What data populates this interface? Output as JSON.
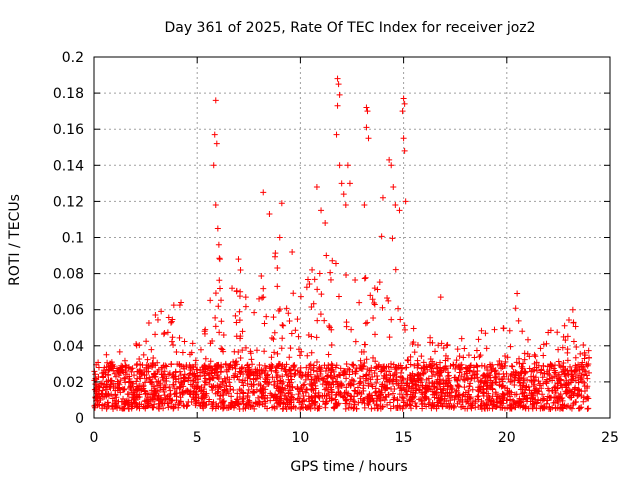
{
  "chart_data": {
    "type": "scatter",
    "title": "Day 361 of 2025, Rate Of TEC Index for receiver joz2",
    "xlabel": "GPS time / hours",
    "ylabel": "ROTI / TECUs",
    "xlim": [
      0,
      25
    ],
    "ylim": [
      0,
      0.2
    ],
    "grid": true,
    "marker": "+",
    "colors": {
      "points": "#ff0000",
      "grid": "#a0a0a0",
      "frame": "#000000"
    },
    "x_ticks": [
      0,
      5,
      10,
      15,
      20,
      25
    ],
    "x_tick_labels": [
      "0",
      "5",
      "10",
      "15",
      "20",
      "25"
    ],
    "y_ticks": [
      0,
      0.02,
      0.04,
      0.06,
      0.08,
      0.1,
      0.12,
      0.14,
      0.16,
      0.18,
      0.2
    ],
    "y_tick_labels": [
      "0",
      "0.02",
      "0.04",
      "0.06",
      "0.08",
      "0.1",
      "0.12",
      "0.14",
      "0.16",
      "0.18",
      "0.2"
    ],
    "series": [
      {
        "name": "ROTI",
        "data_range": [
          0,
          24
        ],
        "base_band": [
          0.005,
          0.03
        ],
        "envelope": [
          [
            0,
            0.035
          ],
          [
            0.5,
            0.045
          ],
          [
            1,
            0.038
          ],
          [
            2,
            0.04
          ],
          [
            2.5,
            0.06
          ],
          [
            3.5,
            0.06
          ],
          [
            4,
            0.075
          ],
          [
            4.5,
            0.07
          ],
          [
            5,
            0.05
          ],
          [
            5.5,
            0.06
          ],
          [
            6,
            0.09
          ],
          [
            6.5,
            0.08
          ],
          [
            7,
            0.07
          ],
          [
            8,
            0.09
          ],
          [
            8.5,
            0.1
          ],
          [
            9,
            0.085
          ],
          [
            9.5,
            0.075
          ],
          [
            10,
            0.07
          ],
          [
            10.5,
            0.085
          ],
          [
            11,
            0.1
          ],
          [
            11.5,
            0.09
          ],
          [
            12,
            0.11
          ],
          [
            12.5,
            0.1
          ],
          [
            13,
            0.08
          ],
          [
            13.5,
            0.075
          ],
          [
            14,
            0.11
          ],
          [
            14.5,
            0.1
          ],
          [
            15,
            0.07
          ],
          [
            15.5,
            0.05
          ],
          [
            16,
            0.045
          ],
          [
            16.5,
            0.05
          ],
          [
            17,
            0.04
          ],
          [
            18,
            0.045
          ],
          [
            19,
            0.05
          ],
          [
            20,
            0.05
          ],
          [
            20.5,
            0.065
          ],
          [
            21,
            0.045
          ],
          [
            22,
            0.05
          ],
          [
            23,
            0.058
          ],
          [
            24,
            0.045
          ]
        ],
        "peaks": [
          [
            5.9,
            0.176
          ],
          [
            5.85,
            0.157
          ],
          [
            5.95,
            0.152
          ],
          [
            5.8,
            0.14
          ],
          [
            5.9,
            0.118
          ],
          [
            6.0,
            0.105
          ],
          [
            6.05,
            0.096
          ],
          [
            6.1,
            0.088
          ],
          [
            7.0,
            0.088
          ],
          [
            7.1,
            0.082
          ],
          [
            8.2,
            0.125
          ],
          [
            8.5,
            0.113
          ],
          [
            9.1,
            0.119
          ],
          [
            9.0,
            0.1
          ],
          [
            9.6,
            0.092
          ],
          [
            10.8,
            0.128
          ],
          [
            11.0,
            0.115
          ],
          [
            11.2,
            0.108
          ],
          [
            11.8,
            0.188
          ],
          [
            11.85,
            0.185
          ],
          [
            11.9,
            0.179
          ],
          [
            11.8,
            0.173
          ],
          [
            11.75,
            0.157
          ],
          [
            11.9,
            0.14
          ],
          [
            12.0,
            0.13
          ],
          [
            12.1,
            0.124
          ],
          [
            12.2,
            0.118
          ],
          [
            12.3,
            0.14
          ],
          [
            12.4,
            0.13
          ],
          [
            13.2,
            0.172
          ],
          [
            13.25,
            0.17
          ],
          [
            13.2,
            0.161
          ],
          [
            13.3,
            0.155
          ],
          [
            13.1,
            0.118
          ],
          [
            14.3,
            0.143
          ],
          [
            14.4,
            0.14
          ],
          [
            14.5,
            0.128
          ],
          [
            14.0,
            0.122
          ],
          [
            14.6,
            0.118
          ],
          [
            15.0,
            0.177
          ],
          [
            15.05,
            0.174
          ],
          [
            14.95,
            0.17
          ],
          [
            15.0,
            0.155
          ],
          [
            15.05,
            0.148
          ],
          [
            15.1,
            0.12
          ],
          [
            14.8,
            0.115
          ],
          [
            16.8,
            0.067
          ],
          [
            20.5,
            0.069
          ],
          [
            23.2,
            0.06
          ]
        ]
      }
    ]
  }
}
